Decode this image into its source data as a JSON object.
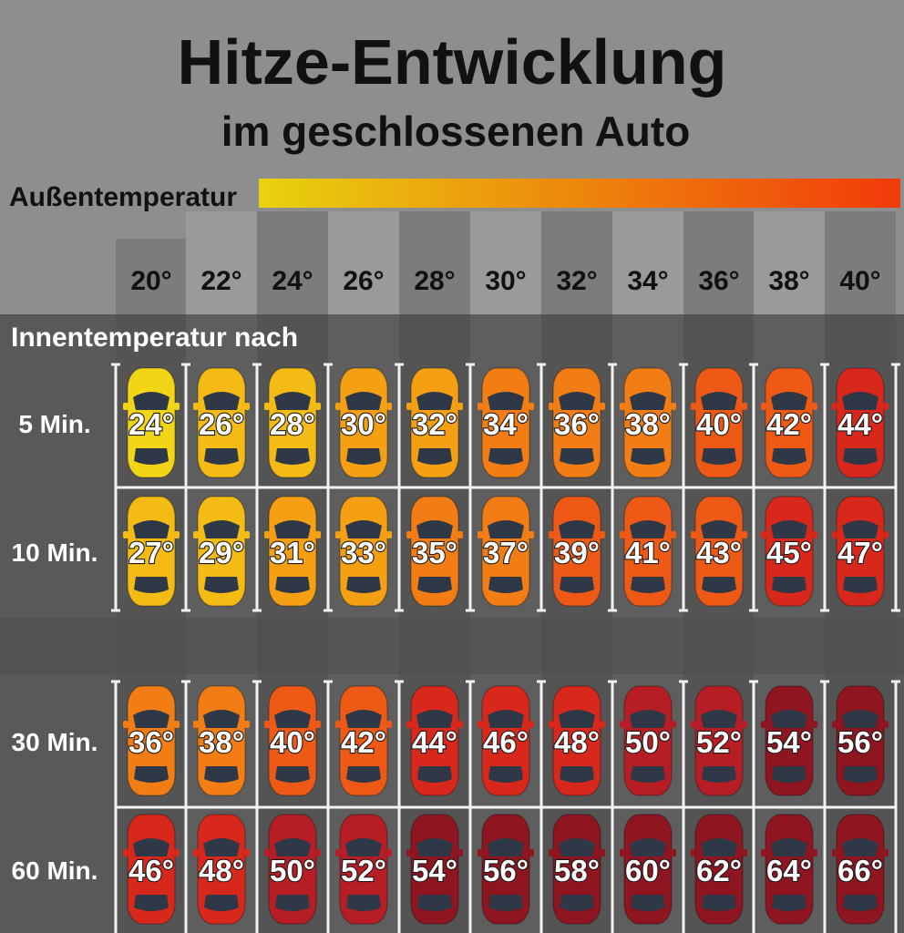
{
  "chart_data": {
    "type": "table",
    "title": "Hitze-Entwicklung",
    "subtitle": "im geschlossenen Auto",
    "x_axis_label": "Außentemperatur",
    "y_axis_label": "Innentemperatur nach",
    "x_unit": "°",
    "value_unit": "°",
    "columns": [
      "20°",
      "22°",
      "24°",
      "26°",
      "28°",
      "30°",
      "32°",
      "34°",
      "36°",
      "38°",
      "40°"
    ],
    "rows": [
      {
        "label": "5 Min.",
        "values": [
          24,
          26,
          28,
          30,
          32,
          34,
          36,
          38,
          40,
          42,
          44
        ]
      },
      {
        "label": "10 Min.",
        "values": [
          27,
          29,
          31,
          33,
          35,
          37,
          39,
          41,
          43,
          45,
          47
        ]
      },
      {
        "label": "30 Min.",
        "values": [
          36,
          38,
          40,
          42,
          44,
          46,
          48,
          50,
          52,
          54,
          56
        ]
      },
      {
        "label": "60 Min.",
        "values": [
          46,
          48,
          50,
          52,
          54,
          56,
          58,
          60,
          62,
          64,
          66
        ]
      }
    ],
    "colors": {
      "background_top": "#8e8e8e",
      "background_bottom": "#5a5a5a",
      "gradient_start": "#e8d20e",
      "gradient_end": "#f23a0a",
      "car_scale": [
        "#f2d516",
        "#f4bb14",
        "#f5a012",
        "#f27d14",
        "#ee5a16",
        "#d8281c",
        "#b71d24",
        "#8f1520"
      ]
    }
  }
}
